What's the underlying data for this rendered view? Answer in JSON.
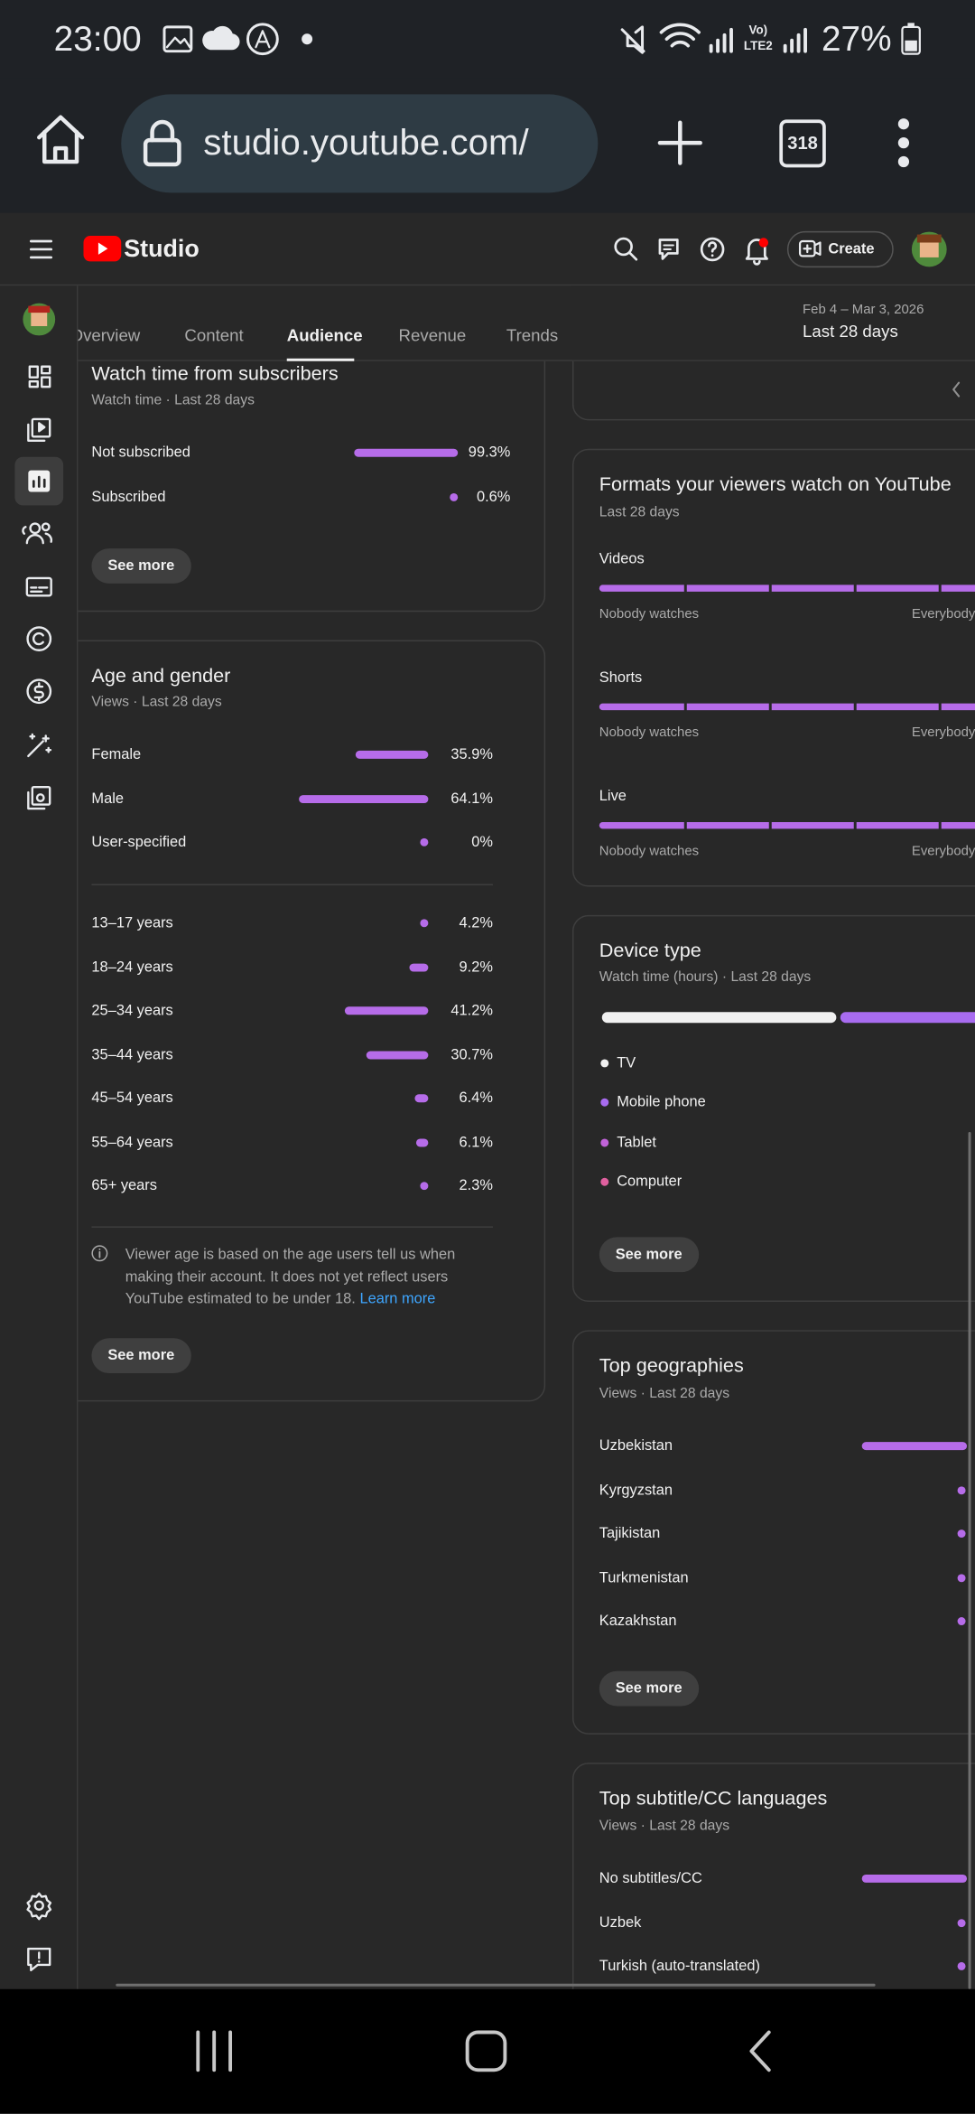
{
  "status_bar": {
    "time": "23:00",
    "volte": "Vo)",
    "lte": "LTE2",
    "battery": "27%"
  },
  "browser": {
    "url": "studio.youtube.com/",
    "tab_count": "318"
  },
  "header": {
    "brand": "Studio",
    "create_button": "Create"
  },
  "tabs": {
    "items": [
      "Overview",
      "Content",
      "Audience",
      "Revenue",
      "Trends"
    ],
    "active": 2
  },
  "date_range": {
    "range": "Feb 4 – Mar 3, 2026",
    "period": "Last 28 days"
  },
  "cards": {
    "subscribers": {
      "title": "Watch time from subscribers",
      "subtitle": "Watch time · Last 28 days",
      "rows": [
        {
          "label": "Not subscribed",
          "value": 99.3,
          "value_label": "99.3%"
        },
        {
          "label": "Subscribed",
          "value": 0.6,
          "value_label": "0.6%"
        }
      ],
      "button": "See more"
    },
    "age_gender": {
      "title": "Age and gender",
      "subtitle": "Views · Last 28 days",
      "gender_rows": [
        {
          "label": "Female",
          "value": 35.9,
          "value_label": "35.9%"
        },
        {
          "label": "Male",
          "value": 64.1,
          "value_label": "64.1%"
        },
        {
          "label": "User-specified",
          "value": 0,
          "value_label": "0%"
        }
      ],
      "age_rows": [
        {
          "label": "13–17 years",
          "value": 4.2,
          "value_label": "4.2%"
        },
        {
          "label": "18–24 years",
          "value": 9.2,
          "value_label": "9.2%"
        },
        {
          "label": "25–34 years",
          "value": 41.2,
          "value_label": "41.2%"
        },
        {
          "label": "35–44 years",
          "value": 30.7,
          "value_label": "30.7%"
        },
        {
          "label": "45–54 years",
          "value": 6.4,
          "value_label": "6.4%"
        },
        {
          "label": "55–64 years",
          "value": 6.1,
          "value_label": "6.1%"
        },
        {
          "label": "65+ years",
          "value": 2.3,
          "value_label": "2.3%"
        }
      ],
      "note": "Viewer age is based on the age users tell us when making their account. It does not yet reflect users YouTube estimated to be under 18.",
      "note_link": "Learn more",
      "button": "See more"
    },
    "formats": {
      "title": "Formats your viewers watch on YouTube",
      "subtitle": "Last 28 days",
      "items": [
        "Videos",
        "Shorts",
        "Live"
      ],
      "scale_min": "Nobody watches",
      "scale_max": "Everybody"
    },
    "device_type": {
      "title": "Device type",
      "subtitle": "Watch time (hours) · Last 28 days",
      "legend": [
        {
          "label": "TV",
          "color": "#f1f1f1"
        },
        {
          "label": "Mobile phone",
          "color": "#a86cf0"
        },
        {
          "label": "Tablet",
          "color": "#c163d9"
        },
        {
          "label": "Computer",
          "color": "#e0609f"
        }
      ],
      "button": "See more"
    },
    "geographies": {
      "title": "Top geographies",
      "subtitle": "Views · Last 28 days",
      "rows": [
        "Uzbekistan",
        "Kyrgyzstan",
        "Tajikistan",
        "Turkmenistan",
        "Kazakhstan"
      ],
      "button": "See more"
    },
    "subtitles": {
      "title": "Top subtitle/CC languages",
      "subtitle": "Views · Last 28 days",
      "rows": [
        "No subtitles/CC",
        "Uzbek",
        "Turkish (auto-translated)"
      ]
    }
  }
}
